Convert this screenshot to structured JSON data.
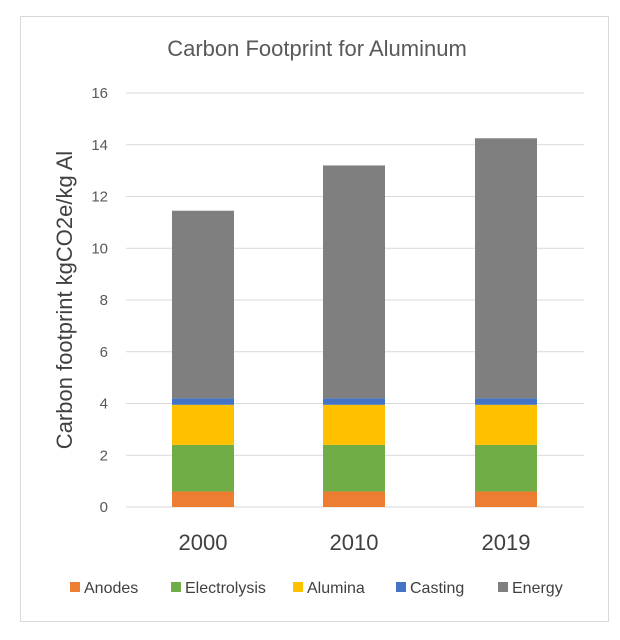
{
  "chart_data": {
    "type": "bar",
    "stacked": true,
    "title": "Carbon Footprint for Aluminum",
    "xlabel": "",
    "ylabel": "Carbon footprint kgCO2e/kg Al",
    "categories": [
      "2000",
      "2010",
      "2019"
    ],
    "ylim": [
      0,
      16
    ],
    "yticks": [
      0,
      2,
      4,
      6,
      8,
      10,
      12,
      14,
      16
    ],
    "grid": true,
    "legend_position": "bottom",
    "series": [
      {
        "name": "Anodes",
        "color": "#ED7D31",
        "values": [
          0.6,
          0.6,
          0.6
        ]
      },
      {
        "name": "Electrolysis",
        "color": "#70AD47",
        "values": [
          1.8,
          1.8,
          1.8
        ]
      },
      {
        "name": "Alumina",
        "color": "#FFC000",
        "values": [
          1.55,
          1.55,
          1.55
        ]
      },
      {
        "name": "Casting",
        "color": "#4472C4",
        "values": [
          0.25,
          0.25,
          0.25
        ]
      },
      {
        "name": "Energy",
        "color": "#7F7F7F",
        "values": [
          7.25,
          9.0,
          10.05
        ]
      }
    ]
  }
}
